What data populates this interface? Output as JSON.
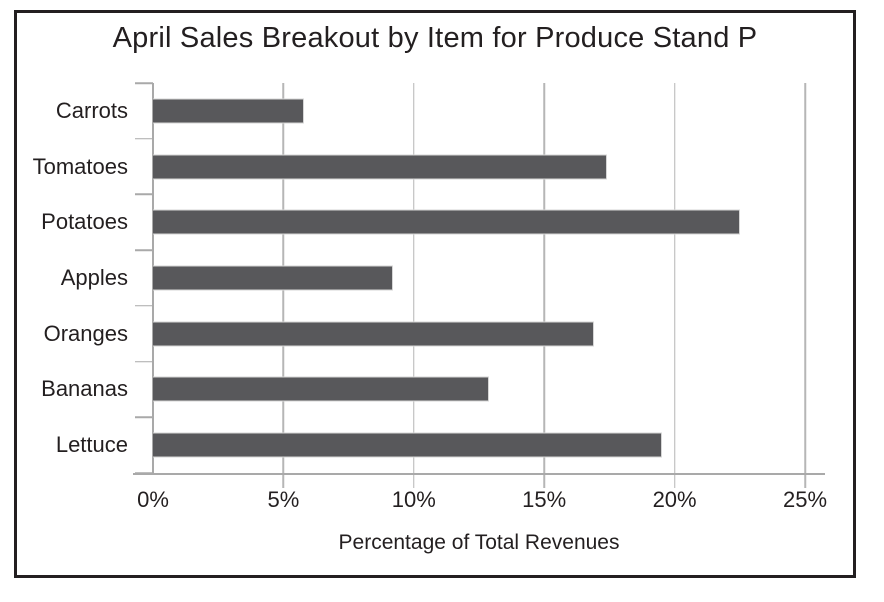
{
  "title": "April Sales Breakout by Item for Produce Stand P",
  "chart_data": {
    "type": "bar",
    "orientation": "horizontal",
    "title": "April Sales Breakout by Item for Produce Stand P",
    "categories": [
      "Carrots",
      "Tomatoes",
      "Potatoes",
      "Apples",
      "Oranges",
      "Bananas",
      "Lettuce"
    ],
    "values": [
      5.8,
      17.4,
      22.5,
      9.2,
      16.9,
      12.9,
      19.5
    ],
    "xlabel": "Percentage of Total Revenues",
    "ylabel": "",
    "xlim": [
      0,
      25
    ],
    "xtick_values": [
      0,
      5,
      10,
      15,
      20,
      25
    ],
    "xticks": [
      "0%",
      "5%",
      "10%",
      "15%",
      "20%",
      "25%"
    ],
    "grid": "vertical",
    "legend": false,
    "bar_color": "#58585b",
    "gridline_color": "#b6b6b6",
    "axis_color": "#a9a9a9",
    "text_color": "#231f20",
    "frame_color": "#231f20"
  }
}
